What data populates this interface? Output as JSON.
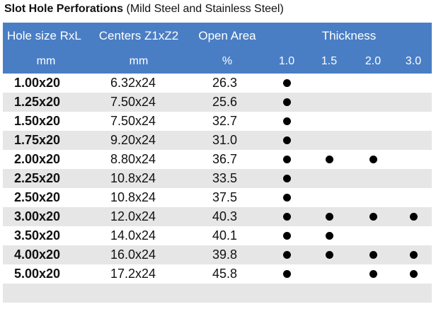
{
  "title": {
    "bold": "Slot Hole Perforations",
    "normal": "(Mild Steel and Stainless Steel)"
  },
  "headers": {
    "hole_size": "Hole size RxL",
    "centers": "Centers Z1xZ2",
    "open_area": "Open Area",
    "thickness": "Thickness",
    "hole_size_unit": "mm",
    "centers_unit": "mm",
    "open_area_unit": "%",
    "thickness_values": [
      "1.0",
      "1.5",
      "2.0",
      "3.0"
    ]
  },
  "rows": [
    {
      "size": "1.00x20",
      "centers": "6.32x24",
      "open_area": "26.3",
      "available": [
        true,
        false,
        false,
        false
      ]
    },
    {
      "size": "1.25x20",
      "centers": "7.50x24",
      "open_area": "25.6",
      "available": [
        true,
        false,
        false,
        false
      ]
    },
    {
      "size": "1.50x20",
      "centers": "7.50x24",
      "open_area": "32.7",
      "available": [
        true,
        false,
        false,
        false
      ]
    },
    {
      "size": "1.75x20",
      "centers": "9.20x24",
      "open_area": "31.0",
      "available": [
        true,
        false,
        false,
        false
      ]
    },
    {
      "size": "2.00x20",
      "centers": "8.80x24",
      "open_area": "36.7",
      "available": [
        true,
        true,
        true,
        false
      ]
    },
    {
      "size": "2.25x20",
      "centers": "10.8x24",
      "open_area": "33.5",
      "available": [
        true,
        false,
        false,
        false
      ]
    },
    {
      "size": "2.50x20",
      "centers": "10.8x24",
      "open_area": "37.5",
      "available": [
        true,
        false,
        false,
        false
      ]
    },
    {
      "size": "3.00x20",
      "centers": "12.0x24",
      "open_area": "40.3",
      "available": [
        true,
        true,
        true,
        true
      ]
    },
    {
      "size": "3.50x20",
      "centers": "14.0x24",
      "open_area": "40.1",
      "available": [
        true,
        true,
        false,
        false
      ]
    },
    {
      "size": "4.00x20",
      "centers": "16.0x24",
      "open_area": "39.8",
      "available": [
        true,
        true,
        true,
        true
      ]
    },
    {
      "size": "5.00x20",
      "centers": "17.2x24",
      "open_area": "45.8",
      "available": [
        true,
        false,
        true,
        true
      ]
    }
  ],
  "colors": {
    "header_bg": "#4a7ec4",
    "header_text": "#ffffff",
    "alt_row_bg": "#e6e6e6",
    "dot": "#000000"
  }
}
